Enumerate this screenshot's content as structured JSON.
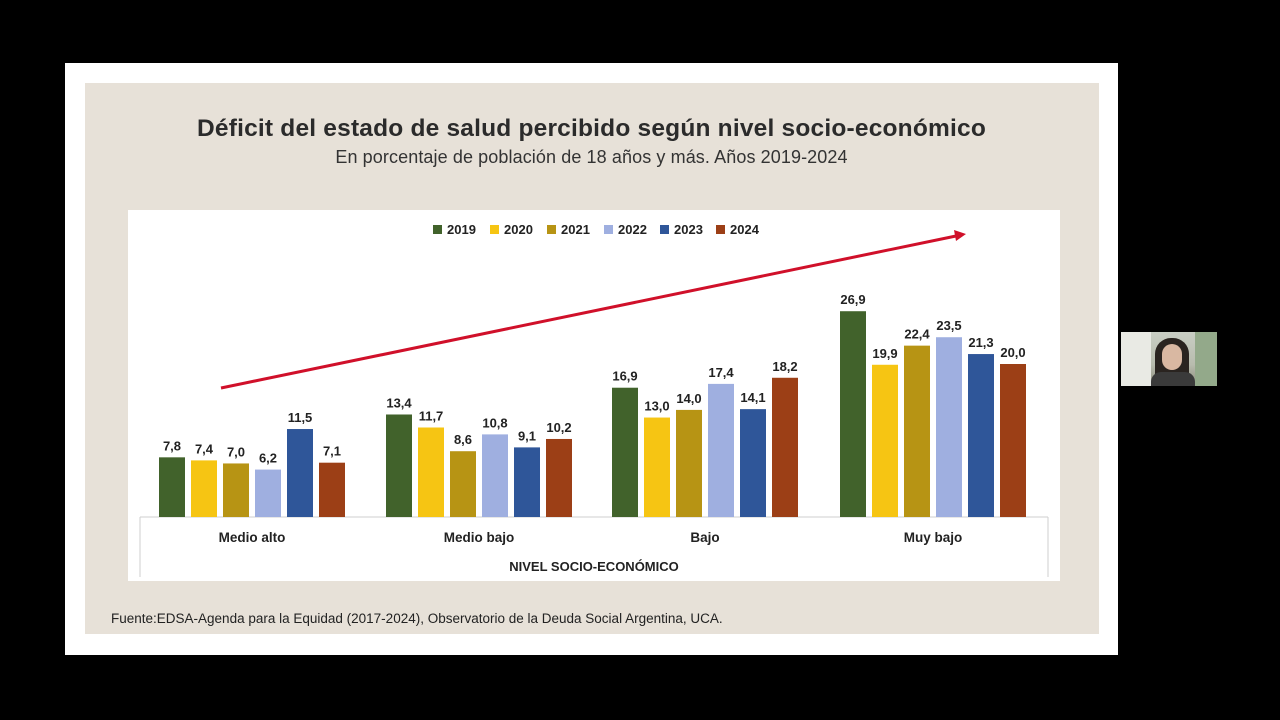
{
  "slide": {
    "title": "Déficit del estado de salud percibido según nivel socio-económico",
    "subtitle": "En porcentaje de población de 18 años y más. Años 2019-2024",
    "source": "Fuente:EDSA-Agenda para la Equidad (2017-2024), Observatorio de la Deuda Social Argentina, UCA."
  },
  "webcam": {
    "icon": "person-webcam"
  },
  "chart_data": {
    "type": "bar",
    "title": "Déficit del estado de salud percibido según nivel socio-económico",
    "subtitle": "En porcentaje de población de 18 años y más. Años 2019-2024",
    "categories": [
      "Medio alto",
      "Medio bajo",
      "Bajo",
      "Muy bajo"
    ],
    "xlabel": "NIVEL SOCIO-ECONÓMICO",
    "ylabel": "",
    "ylim": [
      0,
      30
    ],
    "grid": false,
    "legend_position": "top",
    "series": [
      {
        "name": "2019",
        "color": "#41622b",
        "values": [
          7.8,
          13.4,
          16.9,
          26.9
        ],
        "labels": [
          "7,8",
          "13,4",
          "16,9",
          "26,9"
        ]
      },
      {
        "name": "2020",
        "color": "#f6c513",
        "values": [
          7.4,
          11.7,
          13.0,
          19.9
        ],
        "labels": [
          "7,4",
          "11,7",
          "13,0",
          "19,9"
        ]
      },
      {
        "name": "2021",
        "color": "#b79414",
        "values": [
          7.0,
          8.6,
          14.0,
          22.4
        ],
        "labels": [
          "7,0",
          "8,6",
          "14,0",
          "22,4"
        ]
      },
      {
        "name": "2022",
        "color": "#9fafe0",
        "values": [
          6.2,
          10.8,
          17.4,
          23.5
        ],
        "labels": [
          "6,2",
          "10,8",
          "17,4",
          "23,5"
        ]
      },
      {
        "name": "2023",
        "color": "#2f5699",
        "values": [
          11.5,
          9.1,
          14.1,
          21.3
        ],
        "labels": [
          "11,5",
          "9,1",
          "14,1",
          "21,3"
        ]
      },
      {
        "name": "2024",
        "color": "#9c3f16",
        "values": [
          7.1,
          10.2,
          18.2,
          20.0
        ],
        "labels": [
          "7,1",
          "10,2",
          "18,2",
          "20,0"
        ]
      }
    ],
    "annotation": {
      "type": "trend-arrow",
      "direction": "up",
      "color": "#d0102a"
    }
  }
}
